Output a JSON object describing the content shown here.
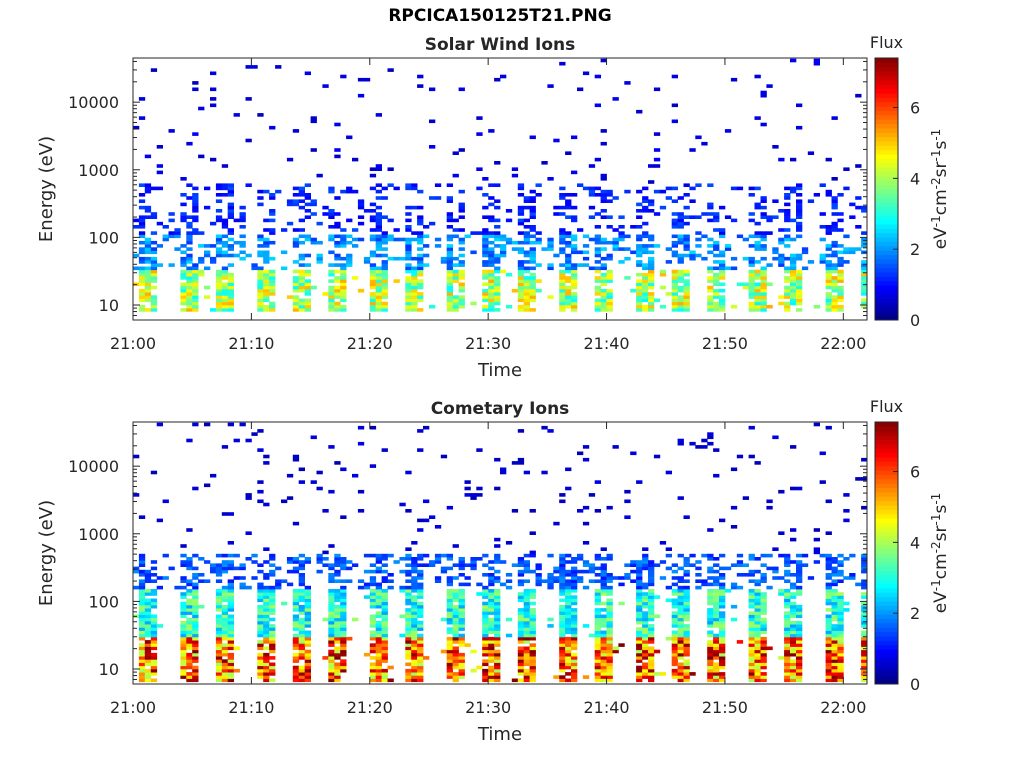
{
  "figure": {
    "title": "RPCICA150125T21.PNG"
  },
  "chart_data": [
    {
      "type": "heatmap",
      "title": "Solar Wind Ions",
      "xlabel": "Time",
      "ylabel": "Energy (eV)",
      "x_ticks": [
        "21:00",
        "21:10",
        "21:20",
        "21:30",
        "21:40",
        "21:50",
        "22:00"
      ],
      "x_range": [
        "21:00",
        "22:02"
      ],
      "y_scale": "log",
      "y_range": [
        6,
        45000
      ],
      "y_ticks": [
        "10",
        "100",
        "1000",
        "10000"
      ],
      "colorbar": {
        "label": "Flux",
        "unit_parts": [
          "eV",
          "-1",
          "cm",
          "-2",
          "sr",
          "-1",
          "s",
          "-1"
        ],
        "ticks": [
          "0",
          "2",
          "4",
          "6"
        ],
        "range": [
          0,
          7.4
        ],
        "colormap": "jet"
      },
      "cycle_minutes": 3.2,
      "bands": [
        {
          "emin": 7.5,
          "emax": 30,
          "level": 4.2
        },
        {
          "emin": 30,
          "emax": 110,
          "level": 2.0
        },
        {
          "emin": 110,
          "emax": 600,
          "level": 1.2
        },
        {
          "emin": 600,
          "emax": 45000,
          "level": 0.7
        }
      ]
    },
    {
      "type": "heatmap",
      "title": "Cometary Ions",
      "xlabel": "Time",
      "ylabel": "Energy (eV)",
      "x_ticks": [
        "21:00",
        "21:10",
        "21:20",
        "21:30",
        "21:40",
        "21:50",
        "22:00"
      ],
      "x_range": [
        "21:00",
        "22:02"
      ],
      "y_scale": "log",
      "y_range": [
        6,
        45000
      ],
      "y_ticks": [
        "10",
        "100",
        "1000",
        "10000"
      ],
      "colorbar": {
        "label": "Flux",
        "unit_parts": [
          "eV",
          "-1",
          "cm",
          "-2",
          "sr",
          "-1",
          "s",
          "-1"
        ],
        "ticks": [
          "0",
          "2",
          "4",
          "6"
        ],
        "range": [
          0,
          7.4
        ],
        "colormap": "jet"
      },
      "cycle_minutes": 3.2,
      "bands": [
        {
          "emin": 6.5,
          "emax": 28,
          "level": 6.0
        },
        {
          "emin": 28,
          "emax": 150,
          "level": 3.2
        },
        {
          "emin": 150,
          "emax": 500,
          "level": 1.6
        },
        {
          "emin": 500,
          "emax": 45000,
          "level": 0.6
        }
      ]
    }
  ]
}
